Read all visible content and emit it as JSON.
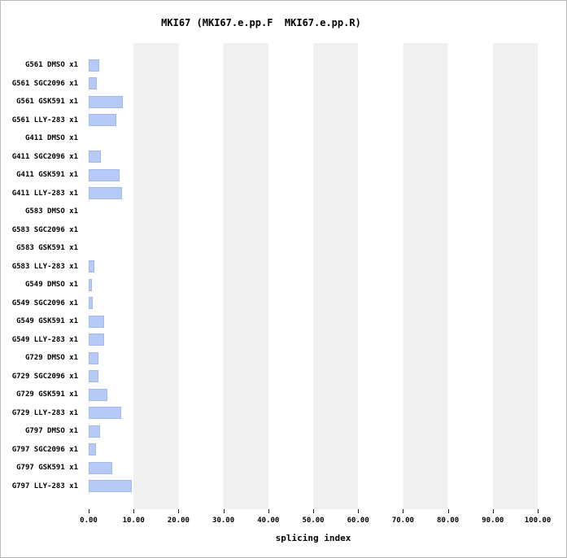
{
  "chart_data": {
    "type": "bar",
    "orientation": "horizontal",
    "title": "MKI67 (MKI67.e.pp.F  MKI67.e.pp.R)",
    "xlabel": "splicing index",
    "xlim": [
      0,
      100
    ],
    "xticks": [
      "0.00",
      "10.00",
      "20.00",
      "30.00",
      "40.00",
      "50.00",
      "60.00",
      "70.00",
      "80.00",
      "90.00",
      "100.00"
    ],
    "grid": "alternating vertical bands every 10 units",
    "legend": "none",
    "categories": [
      "G561 DMSO x1",
      "G561 SGC2096 x1",
      "G561 GSK591 x1",
      "G561 LLY-283 x1",
      "G411 DMSO x1",
      "G411 SGC2096 x1",
      "G411 GSK591 x1",
      "G411 LLY-283 x1",
      "G583 DMSO x1",
      "G583 SGC2096 x1",
      "G583 GSK591 x1",
      "G583 LLY-283 x1",
      "G549 DMSO x1",
      "G549 SGC2096 x1",
      "G549 GSK591 x1",
      "G549 LLY-283 x1",
      "G729 DMSO x1",
      "G729 SGC2096 x1",
      "G729 GSK591 x1",
      "G729 LLY-283 x1",
      "G797 DMSO x1",
      "G797 SGC2096 x1",
      "G797 GSK591 x1",
      "G797 LLY-283 x1"
    ],
    "values": [
      2.3,
      1.8,
      7.6,
      6.2,
      0,
      2.7,
      6.9,
      7.5,
      0,
      0,
      0,
      1.3,
      0.8,
      0.9,
      3.4,
      3.5,
      2.2,
      2.2,
      4.2,
      7.2,
      2.6,
      1.6,
      5.3,
      9.6
    ],
    "colors": {
      "bar_fill": "#b7c9f6",
      "bar_edge": "#a2b9f0",
      "band_light": "#ffffff",
      "band_gray": "#f0f0f0",
      "text": "#000000"
    }
  }
}
